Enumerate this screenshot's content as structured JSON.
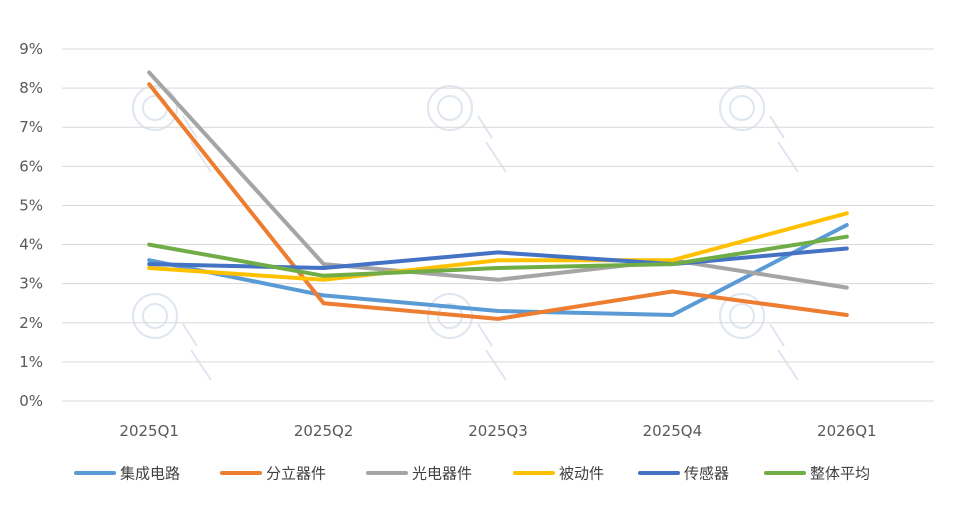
{
  "chart_data": {
    "type": "line",
    "title": "",
    "xlabel": "",
    "ylabel": "",
    "categories": [
      "2025Q1",
      "2025Q2",
      "2025Q3",
      "2025Q4",
      "2026Q1"
    ],
    "ylim": [
      0,
      9
    ],
    "yticks": [
      "0%",
      "1%",
      "2%",
      "3%",
      "4%",
      "5%",
      "6%",
      "7%",
      "8%",
      "9%"
    ],
    "grid": true,
    "legend_position": "bottom",
    "series": [
      {
        "name": "集成电路",
        "color": "#5b9bd5",
        "values": [
          3.6,
          2.7,
          2.3,
          2.2,
          4.5
        ]
      },
      {
        "name": "分立器件",
        "color": "#ed7d31",
        "values": [
          8.1,
          2.5,
          2.1,
          2.8,
          2.2
        ]
      },
      {
        "name": "光电器件",
        "color": "#a5a5a5",
        "values": [
          8.4,
          3.5,
          3.1,
          3.6,
          2.9
        ]
      },
      {
        "name": "被动件",
        "color": "#ffc000",
        "values": [
          3.4,
          3.1,
          3.6,
          3.6,
          4.8
        ]
      },
      {
        "name": "传感器",
        "color": "#4472c4",
        "values": [
          3.5,
          3.4,
          3.8,
          3.5,
          3.9
        ]
      },
      {
        "name": "整体平均",
        "color": "#70ad47",
        "values": [
          4.0,
          3.2,
          3.4,
          3.5,
          4.2
        ]
      }
    ]
  }
}
